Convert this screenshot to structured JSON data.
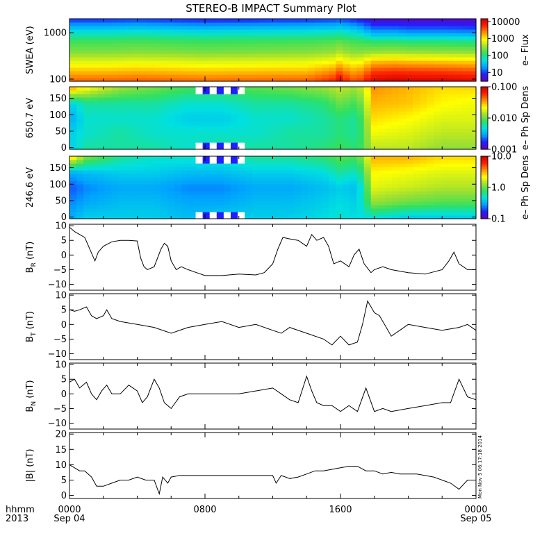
{
  "title": "STEREO-B IMPACT Summary Plot",
  "timestamp": "Mon Nov  5 06:17:18 2014",
  "x_axis": {
    "row1_label": "hhmm",
    "row2_label": "2013",
    "ticks": [
      {
        "hour": 0,
        "time": "0000",
        "date": "Sep 04"
      },
      {
        "hour": 8,
        "time": "0800",
        "date": ""
      },
      {
        "hour": 16,
        "time": "1600",
        "date": ""
      },
      {
        "hour": 24,
        "time": "0000",
        "date": "Sep 05"
      }
    ]
  },
  "colorbar_palette": [
    "#6a00b8",
    "#2020ff",
    "#00a0ff",
    "#00e0e0",
    "#30e060",
    "#a0e030",
    "#ffff00",
    "#ff9000",
    "#ff2000",
    "#c80000"
  ],
  "chart_data": [
    {
      "type": "heatmap",
      "id": "swea",
      "ylabel": "SWEA (eV)",
      "y_scale": "log",
      "ylim": [
        90,
        2000
      ],
      "yticks": [
        {
          "v": 100,
          "label": "100"
        },
        {
          "v": 1000,
          "label": "1000"
        }
      ],
      "colorbar": {
        "label": "e– Flux",
        "scale": "log",
        "range": [
          3,
          15000
        ],
        "ticks": [
          {
            "v": 10,
            "label": "10"
          },
          {
            "v": 100,
            "label": "100"
          },
          {
            "v": 1000,
            "label": "1000"
          },
          {
            "v": 10000,
            "label": "10000"
          }
        ]
      },
      "time_hours": [
        0,
        2,
        4,
        6,
        8,
        10,
        12,
        14,
        15.5,
        16,
        16.5,
        17,
        18,
        19.2,
        20,
        22,
        24
      ],
      "channel_eV": [
        100,
        150,
        250,
        400,
        650,
        1000,
        1500,
        2000
      ],
      "flux": [
        [
          3000,
          3000,
          3200,
          3000,
          2800,
          2900,
          3000,
          3100,
          5000,
          9000,
          4000,
          3500,
          10000,
          12000,
          11000,
          10500,
          9000
        ],
        [
          1500,
          1500,
          1600,
          1500,
          1400,
          1450,
          1500,
          1500,
          2200,
          3500,
          2000,
          1800,
          4500,
          5000,
          4800,
          4500,
          4000
        ],
        [
          600,
          600,
          650,
          620,
          580,
          600,
          620,
          640,
          800,
          1100,
          750,
          700,
          1400,
          1500,
          1400,
          1300,
          1200
        ],
        [
          250,
          250,
          260,
          250,
          230,
          240,
          250,
          260,
          300,
          380,
          280,
          260,
          300,
          320,
          300,
          290,
          280
        ],
        [
          150,
          150,
          160,
          150,
          140,
          145,
          150,
          155,
          170,
          200,
          160,
          150,
          120,
          120,
          110,
          110,
          100
        ],
        [
          60,
          60,
          65,
          60,
          55,
          58,
          60,
          62,
          70,
          75,
          60,
          55,
          25,
          25,
          22,
          22,
          20
        ],
        [
          20,
          20,
          22,
          20,
          18,
          19,
          20,
          21,
          23,
          25,
          20,
          18,
          8,
          8,
          7,
          7,
          6
        ],
        [
          8,
          8,
          9,
          8,
          7,
          7,
          8,
          8,
          9,
          10,
          8,
          7,
          4,
          4,
          4,
          4,
          4
        ]
      ]
    },
    {
      "type": "heatmap",
      "id": "pad650",
      "ylabel": "650.7 eV",
      "y_scale": "linear",
      "ylim": [
        -5,
        185
      ],
      "yticks": [
        {
          "v": 0,
          "label": "0"
        },
        {
          "v": 50,
          "label": "50"
        },
        {
          "v": 100,
          "label": "100"
        },
        {
          "v": 150,
          "label": "150"
        }
      ],
      "colorbar": {
        "label": "e– Ph Sp Dens",
        "scale": "log",
        "range": [
          0.001,
          0.1
        ],
        "ticks": [
          {
            "v": 0.001,
            "label": "0.001"
          },
          {
            "v": 0.01,
            "label": "0.010"
          },
          {
            "v": 0.1,
            "label": "0.100"
          }
        ]
      },
      "time_hours": [
        0,
        1,
        3,
        5,
        7,
        9,
        11,
        13,
        15,
        16,
        17,
        18,
        20,
        22,
        24
      ],
      "pitch_deg": [
        0,
        45,
        90,
        135,
        180
      ],
      "psd": [
        [
          0.004,
          0.006,
          0.006,
          0.006,
          0.005,
          0.006,
          0.006,
          0.006,
          0.007,
          0.008,
          0.007,
          0.015,
          0.015,
          0.012,
          0.012
        ],
        [
          0.004,
          0.005,
          0.006,
          0.005,
          0.005,
          0.005,
          0.005,
          0.006,
          0.006,
          0.007,
          0.006,
          0.02,
          0.018,
          0.015,
          0.015
        ],
        [
          0.003,
          0.005,
          0.005,
          0.005,
          0.004,
          0.004,
          0.005,
          0.005,
          0.006,
          0.007,
          0.006,
          0.025,
          0.022,
          0.018,
          0.018
        ],
        [
          0.004,
          0.006,
          0.006,
          0.006,
          0.005,
          0.005,
          0.006,
          0.006,
          0.007,
          0.01,
          0.008,
          0.03,
          0.028,
          0.022,
          0.02
        ],
        [
          0.03,
          0.02,
          0.012,
          0.01,
          0.008,
          0.008,
          0.009,
          0.01,
          0.012,
          0.015,
          0.012,
          0.035,
          0.03,
          0.025,
          0.025
        ]
      ],
      "gap_hours": [
        7.5,
        10.5
      ]
    },
    {
      "type": "heatmap",
      "id": "pad246",
      "ylabel": "246.6 eV",
      "y_scale": "linear",
      "ylim": [
        -5,
        185
      ],
      "yticks": [
        {
          "v": 0,
          "label": "0"
        },
        {
          "v": 50,
          "label": "50"
        },
        {
          "v": 100,
          "label": "100"
        },
        {
          "v": 150,
          "label": "150"
        }
      ],
      "colorbar": {
        "label": "e– Ph Sp Dens",
        "scale": "log",
        "range": [
          0.1,
          10
        ],
        "ticks": [
          {
            "v": 0.1,
            "label": "0.1"
          },
          {
            "v": 1,
            "label": "1.0"
          },
          {
            "v": 10,
            "label": "10.0"
          }
        ]
      },
      "time_hours": [
        0,
        1,
        3,
        5,
        7,
        9,
        11,
        13,
        15,
        16,
        17,
        18,
        20,
        22,
        24
      ],
      "pitch_deg": [
        0,
        45,
        90,
        135,
        180
      ],
      "psd": [
        [
          0.3,
          0.4,
          0.4,
          0.4,
          0.35,
          0.4,
          0.4,
          0.4,
          0.45,
          0.5,
          0.45,
          0.5,
          0.4,
          0.4,
          0.4
        ],
        [
          0.25,
          0.3,
          0.35,
          0.35,
          0.3,
          0.3,
          0.35,
          0.35,
          0.4,
          0.45,
          0.4,
          1.2,
          1.0,
          0.9,
          0.9
        ],
        [
          0.2,
          0.25,
          0.3,
          0.3,
          0.25,
          0.25,
          0.3,
          0.3,
          0.35,
          0.4,
          0.35,
          1.8,
          1.6,
          1.4,
          1.4
        ],
        [
          0.3,
          0.35,
          0.4,
          0.4,
          0.35,
          0.35,
          0.4,
          0.4,
          0.45,
          0.6,
          0.5,
          2.2,
          2.0,
          1.8,
          1.8
        ],
        [
          2.5,
          1.0,
          0.6,
          0.5,
          0.5,
          0.5,
          0.6,
          0.6,
          0.7,
          0.9,
          0.8,
          3.0,
          3.0,
          2.5,
          2.5
        ]
      ],
      "gap_hours": [
        7.5,
        10.5
      ]
    },
    {
      "type": "line",
      "id": "br",
      "ylabel_main": "B",
      "ylabel_sub": "R",
      "ylabel_unit": " (nT)",
      "ylim": [
        -12,
        10.5
      ],
      "yticks": [
        {
          "v": -10,
          "label": "−10"
        },
        {
          "v": -5,
          "label": "−5"
        },
        {
          "v": 0,
          "label": "0"
        },
        {
          "v": 5,
          "label": "5"
        },
        {
          "v": 10,
          "label": "10"
        }
      ],
      "x_hours": [
        0,
        0.3,
        0.6,
        0.9,
        1.2,
        1.5,
        1.7,
        2.0,
        2.5,
        3.0,
        3.5,
        4.0,
        4.2,
        4.4,
        4.6,
        5.0,
        5.4,
        5.6,
        5.8,
        6.0,
        6.3,
        6.6,
        7.0,
        7.5,
        8,
        9,
        10,
        11,
        11.5,
        12,
        12.3,
        12.6,
        13,
        13.5,
        14,
        14.3,
        14.6,
        15,
        15.3,
        15.6,
        16,
        16.5,
        16.8,
        17.1,
        17.4,
        17.8,
        18,
        18.5,
        19,
        20,
        21,
        22,
        22.4,
        22.7,
        23,
        23.5,
        24
      ],
      "values": [
        9.5,
        8,
        7,
        6,
        2,
        -2,
        1,
        3,
        4.5,
        5,
        5,
        4.8,
        -1,
        -4,
        -5,
        -4,
        2,
        4,
        3,
        -2,
        -5,
        -4,
        -5,
        -6,
        -7,
        -7,
        -6.5,
        -6.8,
        -6,
        -3,
        2,
        6,
        5.5,
        5,
        3,
        7,
        5,
        6,
        3,
        -3,
        -2,
        -4,
        0,
        2,
        -3,
        -6,
        -5,
        -4,
        -5,
        -6,
        -6.5,
        -5,
        -2,
        1,
        -3,
        -5,
        -5
      ]
    },
    {
      "type": "line",
      "id": "bt",
      "ylabel_main": "B",
      "ylabel_sub": "T",
      "ylabel_unit": " (nT)",
      "ylim": [
        -12,
        10.5
      ],
      "yticks": [
        {
          "v": -10,
          "label": "−10"
        },
        {
          "v": -5,
          "label": "−5"
        },
        {
          "v": 0,
          "label": "0"
        },
        {
          "v": 5,
          "label": "5"
        },
        {
          "v": 10,
          "label": "10"
        }
      ],
      "x_hours": [
        0,
        0.3,
        0.6,
        1.0,
        1.3,
        1.6,
        2.0,
        2.2,
        2.5,
        3,
        4,
        5,
        6,
        7,
        8,
        9,
        10,
        11,
        12,
        12.5,
        13,
        14,
        15,
        15.5,
        16,
        16.5,
        17,
        17.3,
        17.6,
        18,
        18.3,
        18.6,
        19,
        19.5,
        20,
        21,
        22,
        23,
        23.5,
        24
      ],
      "values": [
        5,
        4.5,
        5,
        6,
        3,
        2,
        3,
        5,
        2,
        1,
        0,
        -1,
        -3,
        -1,
        0,
        1,
        -1,
        0,
        -2,
        -3,
        -1,
        -3,
        -5,
        -7,
        -4,
        -7,
        -6,
        0,
        8,
        4,
        3,
        0,
        -4,
        -2,
        0,
        -1,
        -2,
        -1,
        0,
        -2
      ]
    },
    {
      "type": "line",
      "id": "bn",
      "ylabel_main": "B",
      "ylabel_sub": "N",
      "ylabel_unit": " (nT)",
      "ylim": [
        -12,
        10.5
      ],
      "yticks": [
        {
          "v": -10,
          "label": "−10"
        },
        {
          "v": -5,
          "label": "−5"
        },
        {
          "v": 0,
          "label": "0"
        },
        {
          "v": 5,
          "label": "5"
        },
        {
          "v": 10,
          "label": "10"
        }
      ],
      "x_hours": [
        0,
        0.3,
        0.6,
        1,
        1.3,
        1.6,
        1.9,
        2.2,
        2.5,
        3,
        3.5,
        4,
        4.3,
        4.6,
        5,
        5.3,
        5.6,
        6,
        6.5,
        7,
        8,
        9,
        10,
        11,
        12,
        12.5,
        13,
        13.5,
        14,
        14.3,
        14.6,
        15,
        15.5,
        16,
        16.5,
        17,
        17.5,
        18,
        18.5,
        19,
        20,
        21,
        22,
        22.5,
        23,
        23.5,
        24
      ],
      "values": [
        4,
        5,
        2,
        4,
        0,
        -2,
        1,
        3,
        0,
        0,
        3,
        1,
        -3,
        -1,
        5,
        2,
        -3,
        -5,
        -1,
        0,
        0,
        0,
        0,
        1,
        2,
        0,
        -2,
        -3,
        6,
        1,
        -3,
        -4,
        -4,
        -6,
        -4,
        -6,
        2,
        -6,
        -5,
        -6,
        -5,
        -4,
        -3,
        -3,
        5,
        -1,
        -2
      ]
    },
    {
      "type": "line",
      "id": "bmag",
      "ylabel_main": "|B|",
      "ylabel_sub": "",
      "ylabel_unit": " (nT)",
      "ylim": [
        -1,
        20.5
      ],
      "yticks": [
        {
          "v": 0,
          "label": "0"
        },
        {
          "v": 5,
          "label": "5"
        },
        {
          "v": 10,
          "label": "10"
        },
        {
          "v": 15,
          "label": "15"
        },
        {
          "v": 20,
          "label": "20"
        }
      ],
      "x_hours": [
        0,
        0.3,
        0.6,
        0.9,
        1.1,
        1.3,
        1.6,
        2.0,
        2.5,
        3,
        3.5,
        4,
        4.5,
        5,
        5.3,
        5.5,
        5.8,
        6,
        6.5,
        7,
        8,
        9,
        10,
        11,
        12,
        12.2,
        12.5,
        13,
        13.5,
        14,
        14.5,
        15,
        15.5,
        16,
        16.5,
        17,
        17.5,
        18,
        18.5,
        19,
        19.5,
        20,
        20.5,
        21,
        21.5,
        22,
        22.5,
        23,
        23.5,
        24
      ],
      "values": [
        10,
        9,
        8,
        8,
        7,
        6,
        3,
        3,
        4,
        5,
        5,
        6,
        5,
        5,
        0.5,
        6,
        4,
        6,
        6.5,
        6.5,
        6.5,
        6.5,
        6.5,
        6.5,
        6.5,
        4,
        6.5,
        5.5,
        6,
        7,
        8,
        8,
        8.5,
        9,
        9.5,
        9.5,
        8,
        8,
        7,
        7.5,
        7,
        7,
        7,
        6.5,
        6,
        5,
        4,
        2,
        5,
        5
      ]
    }
  ]
}
